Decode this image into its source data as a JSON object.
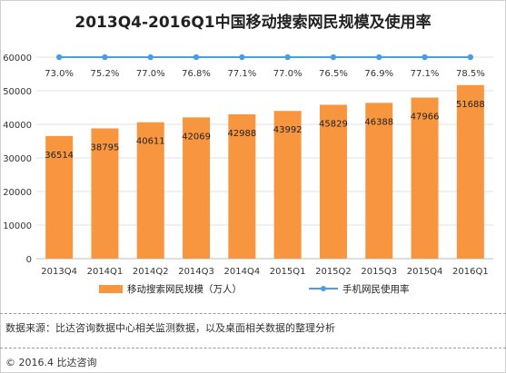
{
  "title": "2013Q4-2016Q1中国移动搜索网民规模及使用率",
  "source_note": "数据来源：比达咨询数据中心相关监测数据，以及桌面相关数据的整理分析",
  "copyright": "© 2016.4  比达咨询",
  "colors": {
    "bar": "#F7963F",
    "line": "#4A9DE0"
  },
  "chart_data": {
    "type": "bar",
    "categories": [
      "2013Q4",
      "2014Q1",
      "2014Q2",
      "2014Q3",
      "2014Q4",
      "2015Q1",
      "2015Q2",
      "2015Q3",
      "2015Q4",
      "2016Q1"
    ],
    "ylim": [
      0,
      60000
    ],
    "yticks": [
      0,
      10000,
      20000,
      30000,
      40000,
      50000,
      60000
    ],
    "grid": true,
    "legend_position": "bottom",
    "series": [
      {
        "name": "移动搜索网民规模（万人）",
        "type": "bar",
        "values": [
          36514,
          38795,
          40611,
          42069,
          42988,
          43992,
          45829,
          46388,
          47966,
          51688
        ],
        "labels": [
          "36514",
          "38795",
          "40611",
          "42069",
          "42988",
          "43992",
          "45829",
          "46388",
          "47966",
          "51688"
        ]
      },
      {
        "name": "手机网民使用率",
        "type": "line",
        "values": [
          73.0,
          75.2,
          77.0,
          76.8,
          77.1,
          77.0,
          76.5,
          76.9,
          77.1,
          78.5
        ],
        "labels": [
          "73.0%",
          "75.2%",
          "77.0%",
          "76.8%",
          "77.1%",
          "77.0%",
          "76.5%",
          "76.9%",
          "77.1%",
          "78.5%"
        ]
      }
    ]
  }
}
